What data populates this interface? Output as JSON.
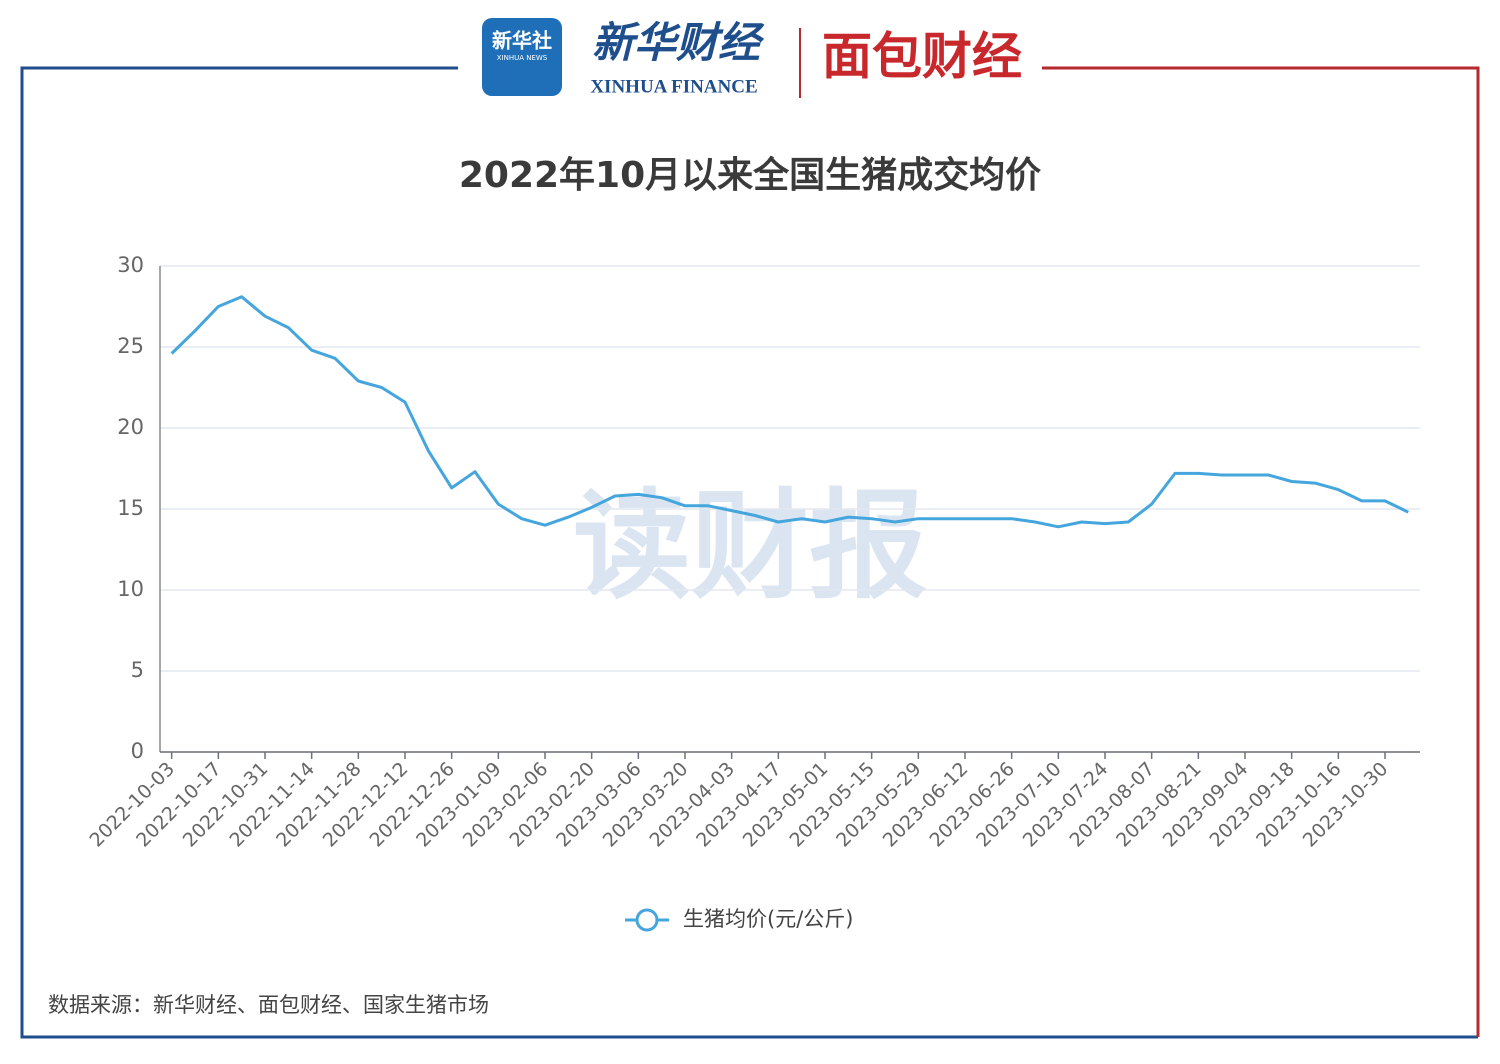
{
  "header": {
    "badge": "新华社",
    "badge_sub": "XINHUA NEWS",
    "brand": "新华财经",
    "brand_sub": "XINHUA FINANCE",
    "partner": "面包财经"
  },
  "watermark": "读财报",
  "source": "数据来源：新华财经、面包财经、国家生猪市场",
  "chart_data": {
    "type": "line",
    "title": "2022年10月以来全国生猪成交均价",
    "categories": [
      "2022-10-03",
      null,
      "2022-10-17",
      null,
      "2022-10-31",
      null,
      "2022-11-14",
      null,
      "2022-11-28",
      null,
      "2022-12-12",
      null,
      "2022-12-26",
      null,
      "2023-01-09",
      null,
      "2023-02-06",
      null,
      "2023-02-20",
      null,
      "2023-03-06",
      null,
      "2023-03-20",
      null,
      "2023-04-03",
      null,
      "2023-04-17",
      null,
      "2023-05-01",
      null,
      "2023-05-15",
      null,
      "2023-05-29",
      null,
      "2023-06-12",
      null,
      "2023-06-26",
      null,
      "2023-07-10",
      null,
      "2023-07-24",
      null,
      "2023-08-07",
      null,
      "2023-08-21",
      null,
      "2023-09-04",
      null,
      "2023-09-18",
      null,
      "2023-10-16",
      null,
      "2023-10-30",
      null
    ],
    "series": [
      {
        "name": "生猪均价(元/公斤)",
        "color": "#45a5dd",
        "values": [
          24.6,
          26.0,
          27.5,
          28.1,
          26.9,
          26.2,
          24.8,
          24.3,
          22.9,
          22.5,
          21.6,
          18.6,
          16.3,
          17.3,
          15.3,
          14.4,
          14.0,
          14.5,
          15.1,
          15.8,
          15.9,
          15.7,
          15.2,
          15.2,
          14.9,
          14.6,
          14.2,
          14.4,
          14.2,
          14.5,
          14.4,
          14.2,
          14.4,
          14.4,
          14.4,
          14.4,
          14.4,
          14.2,
          13.9,
          14.2,
          14.1,
          14.2,
          15.3,
          17.2,
          17.2,
          17.1,
          17.1,
          17.1,
          16.7,
          16.6,
          16.2,
          15.5,
          15.5,
          14.8
        ]
      }
    ],
    "ylim": [
      0,
      30
    ],
    "yticks": [
      0,
      5,
      10,
      15,
      20,
      25,
      30
    ],
    "grid": true
  }
}
